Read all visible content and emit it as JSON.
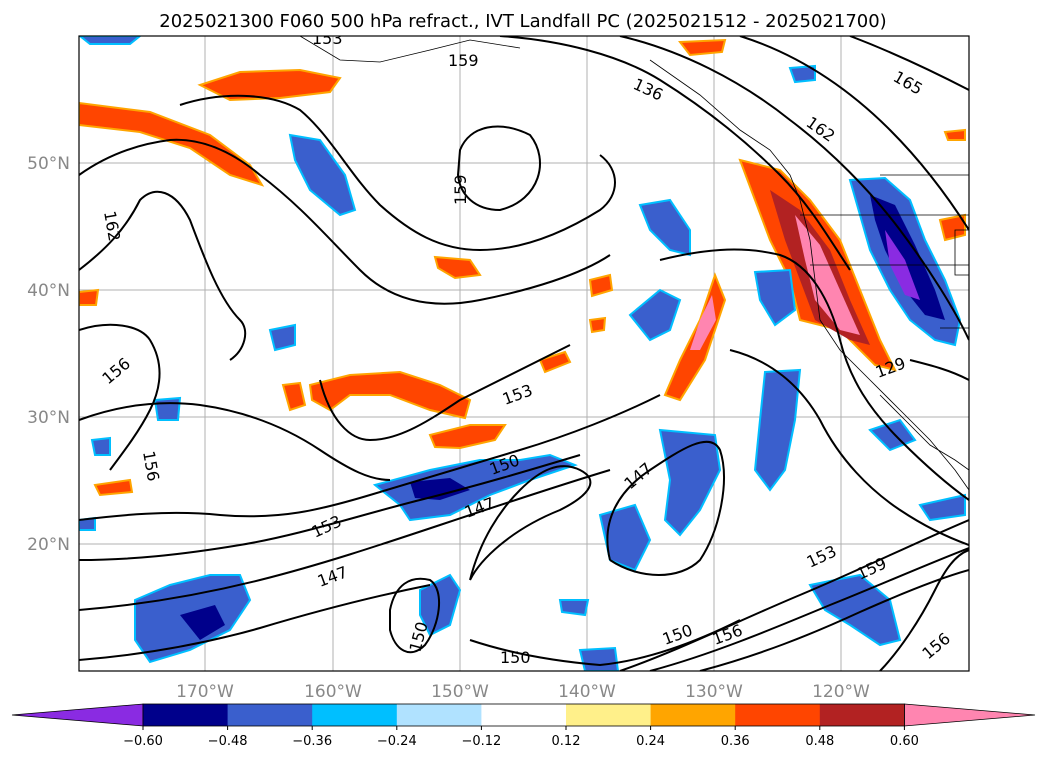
{
  "title": "2025021300 F060 500 hPa refract., IVT Landfall PC (2025021512 - 2025021700)",
  "axes": {
    "lat_labels": [
      "50°N",
      "40°N",
      "30°N",
      "20°N"
    ],
    "lon_labels": [
      "170°W",
      "160°W",
      "150°W",
      "140°W",
      "130°W",
      "120°W"
    ]
  },
  "colorbar": {
    "ticks": [
      "−0.60",
      "−0.48",
      "−0.36",
      "−0.24",
      "−0.12",
      "0.12",
      "0.24",
      "0.36",
      "0.48",
      "0.60"
    ],
    "colors": [
      "#8a2be2",
      "#00008b",
      "#3a5fcd",
      "#00bfff",
      "#b0e2ff",
      "#ffffff",
      "#fff08a",
      "#ffa500",
      "#ff4500",
      "#b22222",
      "#ff85b0"
    ]
  },
  "contour_labels": [
    "159",
    "136",
    "165",
    "162",
    "159",
    "162",
    "156",
    "156",
    "153",
    "150",
    "147",
    "153",
    "147",
    "147",
    "150",
    "150",
    "156",
    "150",
    "153",
    "159",
    "156",
    "129",
    "153"
  ],
  "chart_data": {
    "type": "map",
    "projection": "lat-lon",
    "lon_range": [
      -180,
      -110
    ],
    "lat_range": [
      10,
      60
    ],
    "gridlines": true,
    "filled_field": "IVT landfall PC",
    "contour_field": "500 hPa refractivity",
    "colorbar_levels": [
      -0.6,
      -0.48,
      -0.36,
      -0.24,
      -0.12,
      0.12,
      0.24,
      0.36,
      0.48,
      0.6
    ]
  }
}
